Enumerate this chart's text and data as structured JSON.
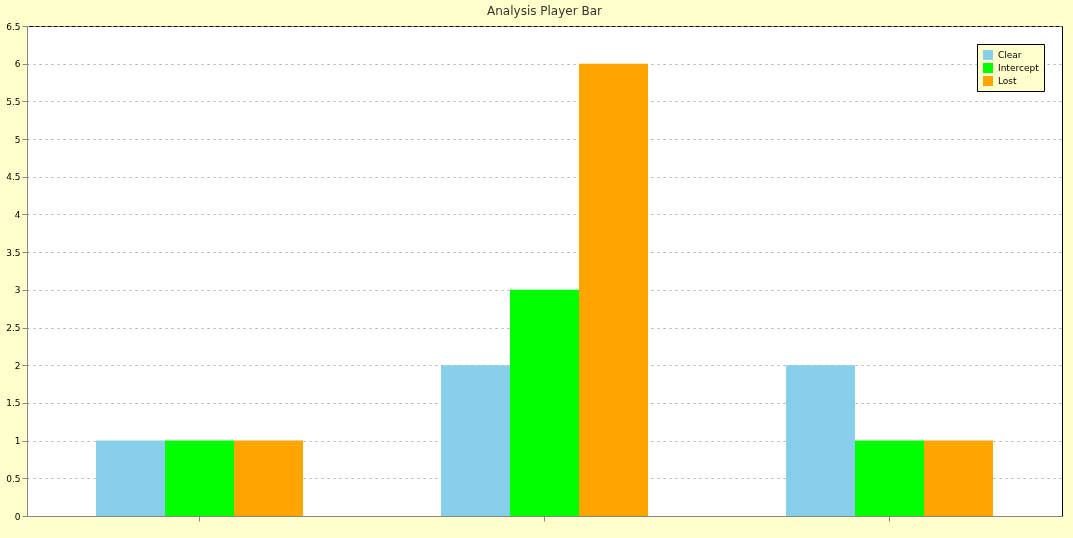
{
  "chart_data": {
    "type": "bar",
    "title": "Analysis Player Bar",
    "categories": [
      null,
      null,
      null
    ],
    "series": [
      {
        "name": "Clear",
        "color": "#87ceeb",
        "values": [
          1,
          2,
          2
        ]
      },
      {
        "name": "Intercept",
        "color": "#00ff00",
        "values": [
          1,
          3,
          1
        ]
      },
      {
        "name": "Lost",
        "color": "#ffa500",
        "values": [
          1,
          6,
          1
        ]
      }
    ],
    "ylim": [
      0,
      6.5
    ],
    "yticks": [
      0,
      0.5,
      1,
      1.5,
      2,
      2.5,
      3,
      3.5,
      4,
      4.5,
      5,
      5.5,
      6,
      6.5
    ],
    "grid": "y",
    "legend": "top right",
    "tick_labels": "y"
  }
}
